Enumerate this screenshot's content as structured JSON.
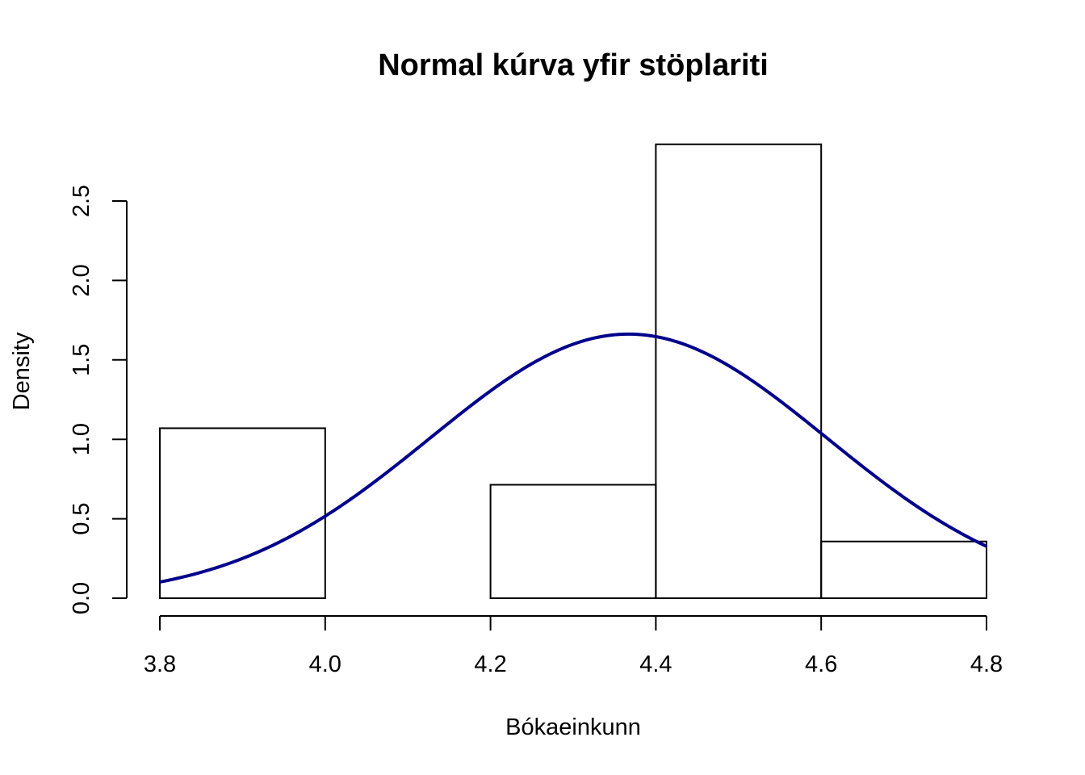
{
  "chart_data": {
    "type": "histogram",
    "title": "Normal kúrva yfir stöplariti",
    "xlabel": "Bókaeinkunn",
    "ylabel": "Density",
    "xlim": [
      3.8,
      4.8
    ],
    "ylim": [
      0,
      2.5
    ],
    "x_ticks": [
      "3.8",
      "4.0",
      "4.2",
      "4.4",
      "4.6",
      "4.8"
    ],
    "y_ticks": [
      "0.0",
      "0.5",
      "1.0",
      "1.5",
      "2.0",
      "2.5"
    ],
    "bins": [
      {
        "from": 3.8,
        "to": 4.0,
        "density": 1.07
      },
      {
        "from": 4.0,
        "to": 4.2,
        "density": 0.0
      },
      {
        "from": 4.2,
        "to": 4.4,
        "density": 0.714
      },
      {
        "from": 4.4,
        "to": 4.6,
        "density": 2.857
      },
      {
        "from": 4.6,
        "to": 4.8,
        "density": 0.357
      }
    ],
    "normal_curve": {
      "mean": 4.367,
      "sd": 0.24,
      "color": "#00008B"
    },
    "grid": false,
    "legend": "none"
  }
}
